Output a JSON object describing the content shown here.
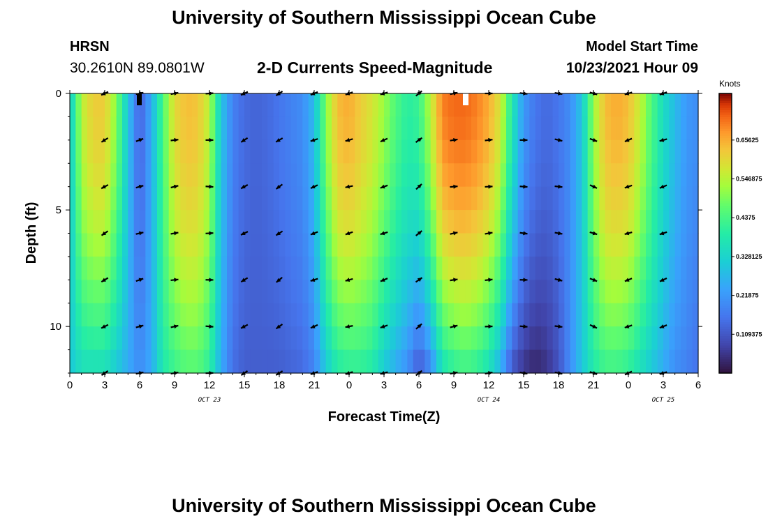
{
  "header": {
    "title": "University of Southern Mississippi Ocean Cube",
    "station": "HRSN",
    "coordinates": "30.2610N  89.0801W",
    "subtitle": "2-D Currents Speed-Magnitude",
    "start_label": "Model Start Time",
    "start_value": "10/23/2021 Hour 09"
  },
  "footer": {
    "title": "University of Southern Mississippi Ocean Cube"
  },
  "colorbar": {
    "units": "Knots",
    "tick_labels": [
      "0.65625",
      "0.546875",
      "0.4375",
      "0.328125",
      "0.21875",
      "0.109375"
    ],
    "tick_values": [
      0.65625,
      0.546875,
      0.4375,
      0.328125,
      0.21875,
      0.109375
    ],
    "range": [
      0,
      0.7875
    ]
  },
  "chart_data": {
    "type": "heatmap",
    "title": "2-D Currents Speed-Magnitude",
    "xlabel": "Forecast Time(Z)",
    "ylabel": "Depth (ft)",
    "xlim": [
      0,
      54
    ],
    "ylim": [
      12,
      0
    ],
    "x_ticks": [
      0,
      3,
      6,
      9,
      12,
      15,
      18,
      21,
      24,
      27,
      30,
      33,
      36,
      39,
      42,
      45,
      48,
      51,
      54
    ],
    "x_tick_labels": [
      "0",
      "3",
      "6",
      "9",
      "12",
      "15",
      "18",
      "21",
      "0",
      "3",
      "6",
      "9",
      "12",
      "15",
      "18",
      "21",
      "0",
      "3",
      "6"
    ],
    "y_ticks": [
      0,
      5,
      10
    ],
    "y_tick_labels": [
      "0",
      "5",
      "10"
    ],
    "date_labels": [
      {
        "text": "OCT 23",
        "x": 12
      },
      {
        "text": "OCT 24",
        "x": 36
      },
      {
        "text": "OCT 25",
        "x": 51
      }
    ],
    "speed_profile_hours": [
      0,
      1,
      2,
      3,
      4,
      5,
      6,
      7,
      8,
      9,
      10,
      11,
      12,
      13,
      14,
      15,
      16,
      17,
      18,
      19,
      20,
      21,
      22,
      23,
      24,
      25,
      26,
      27,
      28,
      29,
      30,
      31,
      32,
      33,
      34,
      35,
      36,
      37,
      38,
      39,
      40,
      41,
      42,
      43,
      44,
      45,
      46,
      47,
      48,
      49,
      50,
      51,
      52,
      53,
      54
    ],
    "speed_surface_knots": [
      0.3,
      0.55,
      0.62,
      0.62,
      0.5,
      0.3,
      0.12,
      0.25,
      0.45,
      0.6,
      0.64,
      0.63,
      0.55,
      0.3,
      0.18,
      0.14,
      0.13,
      0.14,
      0.16,
      0.18,
      0.2,
      0.28,
      0.5,
      0.64,
      0.66,
      0.62,
      0.58,
      0.52,
      0.45,
      0.4,
      0.42,
      0.55,
      0.7,
      0.72,
      0.72,
      0.7,
      0.66,
      0.58,
      0.38,
      0.22,
      0.16,
      0.14,
      0.16,
      0.2,
      0.3,
      0.52,
      0.64,
      0.66,
      0.64,
      0.56,
      0.45,
      0.35,
      0.28,
      0.22,
      0.2
    ],
    "speed_bottom_knots": [
      0.3,
      0.35,
      0.35,
      0.35,
      0.3,
      0.25,
      0.2,
      0.25,
      0.38,
      0.42,
      0.45,
      0.45,
      0.4,
      0.25,
      0.15,
      0.12,
      0.12,
      0.12,
      0.12,
      0.13,
      0.14,
      0.18,
      0.3,
      0.38,
      0.4,
      0.4,
      0.38,
      0.3,
      0.25,
      0.2,
      0.1,
      0.18,
      0.35,
      0.4,
      0.42,
      0.4,
      0.35,
      0.25,
      0.1,
      0.05,
      0.03,
      0.05,
      0.1,
      0.2,
      0.3,
      0.38,
      0.42,
      0.42,
      0.4,
      0.35,
      0.3,
      0.25,
      0.2,
      0.18,
      0.15
    ],
    "arrow_depths_ft": [
      0,
      2,
      4,
      6,
      8,
      10,
      12
    ],
    "arrow_hours": [
      3,
      6,
      9,
      12,
      15,
      18,
      21,
      24,
      27,
      30,
      33,
      36,
      39,
      42,
      45,
      48,
      51
    ],
    "arrow_direction_deg": [
      210,
      15,
      10,
      0,
      210,
      215,
      200,
      195,
      200,
      40,
      10,
      5,
      355,
      350,
      340,
      200,
      200
    ]
  }
}
